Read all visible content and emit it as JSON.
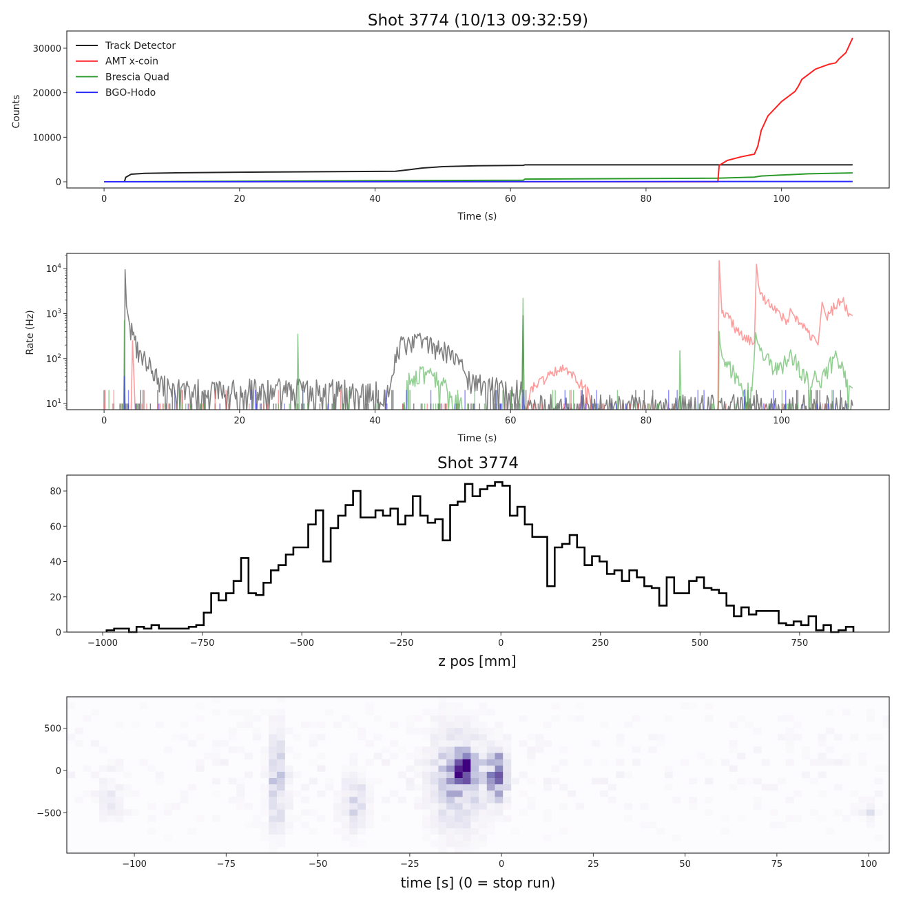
{
  "chart_data": [
    {
      "type": "line",
      "title": "Shot 3774 (10/13 09:32:59)",
      "xlabel": "Time (s)",
      "ylabel": "Counts",
      "xlim": [
        -5.5,
        115.9
      ],
      "ylim": [
        -1390,
        33865
      ],
      "xticks": [
        0,
        20,
        40,
        60,
        80,
        100
      ],
      "xtick_labels": [
        "0",
        "20",
        "40",
        "60",
        "80",
        "100"
      ],
      "yticks": [
        0,
        10000,
        20000,
        30000
      ],
      "ytick_labels": [
        "0",
        "10000",
        "20000",
        "30000"
      ],
      "legend_position": "top-left",
      "series": [
        {
          "name": "Track Detector",
          "color": "#222222",
          "points": [
            [
              0,
              0
            ],
            [
              3,
              0
            ],
            [
              3.2,
              1000
            ],
            [
              4,
              1700
            ],
            [
              6,
              1900
            ],
            [
              10,
              2000
            ],
            [
              20,
              2150
            ],
            [
              30,
              2250
            ],
            [
              43,
              2350
            ],
            [
              45,
              2700
            ],
            [
              47,
              3100
            ],
            [
              50,
              3400
            ],
            [
              55,
              3600
            ],
            [
              61.9,
              3700
            ],
            [
              62.1,
              3800
            ],
            [
              110.5,
              3800
            ]
          ]
        },
        {
          "name": "AMT x-coin",
          "color": "#ff2020",
          "points": [
            [
              0,
              0
            ],
            [
              90.6,
              0
            ],
            [
              90.8,
              3700
            ],
            [
              92,
              4800
            ],
            [
              94,
              5600
            ],
            [
              96,
              6200
            ],
            [
              96.5,
              8000
            ],
            [
              97,
              11500
            ],
            [
              98,
              14800
            ],
            [
              100,
              18000
            ],
            [
              102,
              20300
            ],
            [
              102.5,
              21500
            ],
            [
              103,
              23000
            ],
            [
              105,
              25300
            ],
            [
              107,
              26400
            ],
            [
              108,
              26700
            ],
            [
              108.5,
              27600
            ],
            [
              109.5,
              29000
            ],
            [
              110.5,
              32300
            ]
          ]
        },
        {
          "name": "Brescia Quad",
          "color": "#2a9a2a",
          "points": [
            [
              0,
              0
            ],
            [
              61.9,
              350
            ],
            [
              62.1,
              600
            ],
            [
              90.6,
              800
            ],
            [
              96,
              1050
            ],
            [
              97,
              1300
            ],
            [
              104,
              1800
            ],
            [
              110.5,
              2000
            ]
          ]
        },
        {
          "name": "BGO-Hodo",
          "color": "#2a2aff",
          "points": [
            [
              0,
              0
            ],
            [
              110.5,
              60
            ]
          ]
        }
      ]
    },
    {
      "type": "line",
      "xlabel": "Time (s)",
      "ylabel": "Rate (Hz)",
      "yscale": "log",
      "xlim": [
        -5.5,
        115.9
      ],
      "ylim": [
        7.3,
        21900
      ],
      "xticks": [
        0,
        20,
        40,
        60,
        80,
        100
      ],
      "xtick_labels": [
        "0",
        "20",
        "40",
        "60",
        "80",
        "100"
      ],
      "yticks": [
        10,
        100,
        1000,
        10000
      ],
      "ytick_labels": [
        {
          "base": "10",
          "exp": "1"
        },
        {
          "base": "10",
          "exp": "2"
        },
        {
          "base": "10",
          "exp": "3"
        },
        {
          "base": "10",
          "exp": "4"
        }
      ],
      "series": [
        {
          "name": "Track Detector",
          "color": "#7a7a7a",
          "noise": 0.25,
          "sparse_floor": 0.55,
          "points": [
            [
              3.0,
              7
            ],
            [
              3.1,
              9500
            ],
            [
              3.3,
              1500
            ],
            [
              3.8,
              500
            ],
            [
              4.5,
              200
            ],
            [
              5.5,
              100
            ],
            [
              7,
              55
            ],
            [
              8,
              30
            ],
            [
              10,
              20
            ],
            [
              20,
              20
            ],
            [
              30,
              20
            ],
            [
              40,
              18
            ],
            [
              42,
              14
            ],
            [
              42.5,
              60
            ],
            [
              44,
              200
            ],
            [
              46,
              250
            ],
            [
              48,
              190
            ],
            [
              51,
              120
            ],
            [
              53,
              60
            ],
            [
              54,
              28
            ],
            [
              61.7,
              18
            ],
            [
              61.85,
              900
            ],
            [
              62.0,
              12
            ],
            [
              64,
              9
            ],
            [
              110.5,
              9
            ]
          ]
        },
        {
          "name": "AMT x-coin",
          "color": "#ff5a5a",
          "noise": 0.12,
          "sparse_floor": 0.25,
          "points": [
            [
              4.0,
              7
            ],
            [
              4.2,
              250
            ],
            [
              4.6,
              7
            ],
            [
              62.5,
              7
            ],
            [
              63,
              20
            ],
            [
              66,
              45
            ],
            [
              68,
              60
            ],
            [
              70,
              30
            ],
            [
              71.5,
              20
            ],
            [
              72,
              7
            ],
            [
              90.6,
              7
            ],
            [
              90.8,
              15000
            ],
            [
              91.2,
              1200
            ],
            [
              93,
              520
            ],
            [
              95,
              260
            ],
            [
              96,
              230
            ],
            [
              96.3,
              10000
            ],
            [
              97,
              2500
            ],
            [
              99,
              1300
            ],
            [
              101,
              650
            ],
            [
              101.3,
              1300
            ],
            [
              101.8,
              800
            ],
            [
              103,
              520
            ],
            [
              105,
              260
            ],
            [
              105.4,
              200
            ],
            [
              106,
              1800
            ],
            [
              106.6,
              800
            ],
            [
              108,
              1500
            ],
            [
              109,
              2000
            ],
            [
              110,
              1000
            ],
            [
              110.5,
              900
            ]
          ]
        },
        {
          "name": "Brescia Quad",
          "color": "#4caf4c",
          "noise": 0.22,
          "sparse_floor": 0.3,
          "points": [
            [
              2.9,
              7
            ],
            [
              3.0,
              700
            ],
            [
              3.1,
              7
            ],
            [
              28.5,
              7
            ],
            [
              28.6,
              350
            ],
            [
              28.8,
              7
            ],
            [
              44,
              7
            ],
            [
              45,
              35
            ],
            [
              48,
              45
            ],
            [
              51,
              22
            ],
            [
              53,
              7
            ],
            [
              61.7,
              7
            ],
            [
              61.85,
              2200
            ],
            [
              62.0,
              7
            ],
            [
              84.9,
              7
            ],
            [
              85,
              150
            ],
            [
              85.2,
              7
            ],
            [
              90.7,
              7
            ],
            [
              90.8,
              480
            ],
            [
              91.5,
              80
            ],
            [
              93,
              40
            ],
            [
              95.5,
              15
            ],
            [
              96.2,
              450
            ],
            [
              97,
              120
            ],
            [
              99,
              60
            ],
            [
              101.5,
              100
            ],
            [
              104,
              30
            ],
            [
              106,
              35
            ],
            [
              108,
              100
            ],
            [
              110,
              25
            ],
            [
              110.5,
              22
            ]
          ]
        },
        {
          "name": "BGO-Hodo",
          "color": "#3a3aff",
          "noise": 0,
          "sparse_floor": 0.3,
          "points": [
            [
              2.95,
              7
            ],
            [
              3.0,
              40
            ],
            [
              3.1,
              7
            ],
            [
              61.8,
              7
            ],
            [
              61.85,
              20
            ],
            [
              62.0,
              7
            ]
          ]
        }
      ]
    },
    {
      "type": "bar",
      "subtype": "step-histogram",
      "title": "Shot 3774",
      "xlabel": "z pos [mm]",
      "ylabel": "",
      "bin_start": -990,
      "bin_width": 18.75,
      "xlim": [
        -1090,
        975
      ],
      "ylim": [
        0,
        89
      ],
      "xticks": [
        -1000,
        -750,
        -500,
        -250,
        0,
        250,
        500,
        750
      ],
      "xtick_labels": [
        "−1000",
        "−750",
        "−500",
        "−250",
        "0",
        "250",
        "500",
        "750"
      ],
      "yticks": [
        0,
        20,
        40,
        60,
        80
      ],
      "ytick_labels": [
        "0",
        "20",
        "40",
        "60",
        "80"
      ],
      "values": [
        1,
        2,
        2,
        0,
        3,
        2,
        4,
        2,
        2,
        2,
        2,
        3,
        4,
        11,
        22,
        18,
        22,
        29,
        42,
        22,
        21,
        28,
        35,
        38,
        44,
        48,
        48,
        61,
        69,
        40,
        59,
        66,
        72,
        80,
        65,
        65,
        69,
        66,
        70,
        61,
        66,
        77,
        66,
        62,
        64,
        52,
        72,
        74,
        84,
        77,
        81,
        83,
        85,
        83,
        66,
        71,
        61,
        54,
        54,
        26,
        48,
        50,
        55,
        48,
        38,
        43,
        40,
        33,
        35,
        29,
        35,
        31,
        26,
        25,
        15,
        31,
        22,
        22,
        29,
        31,
        25,
        24,
        22,
        15,
        9,
        14,
        10,
        12,
        12,
        12,
        5,
        4,
        6,
        4,
        9,
        1,
        4,
        0,
        1,
        3
      ]
    },
    {
      "type": "heatmap",
      "xlabel": "time [s] (0 =  stop run)",
      "ylabel": "",
      "colormap": "Purples",
      "xlim": [
        -118.4,
        105.6
      ],
      "ylim": [
        -975,
        870
      ],
      "xticks": [
        -100,
        -75,
        -50,
        -25,
        0,
        25,
        50,
        75,
        100
      ],
      "xtick_labels": [
        "−100",
        "−75",
        "−50",
        "−25",
        "0",
        "25",
        "50",
        "75",
        "100"
      ],
      "yticks": [
        -500,
        0,
        500
      ],
      "ytick_labels": [
        "−500",
        "0",
        "500"
      ],
      "hotspots": [
        {
          "t": -61,
          "z": -150,
          "st": 1.6,
          "sz": 380,
          "w": 0.32
        },
        {
          "t": -40,
          "z": -380,
          "st": 2.2,
          "sz": 220,
          "w": 0.22
        },
        {
          "t": -106,
          "z": -350,
          "st": 2.5,
          "sz": 150,
          "w": 0.12
        },
        {
          "t": -12,
          "z": -100,
          "st": 5,
          "sz": 380,
          "w": 0.35
        },
        {
          "t": -9.5,
          "z": 40,
          "st": 2.2,
          "sz": 90,
          "w": 1.0
        },
        {
          "t": -1,
          "z": -50,
          "st": 1.6,
          "sz": 180,
          "w": 0.7
        },
        {
          "t": 100,
          "z": -450,
          "st": 1.2,
          "sz": 70,
          "w": 0.2
        }
      ]
    }
  ]
}
